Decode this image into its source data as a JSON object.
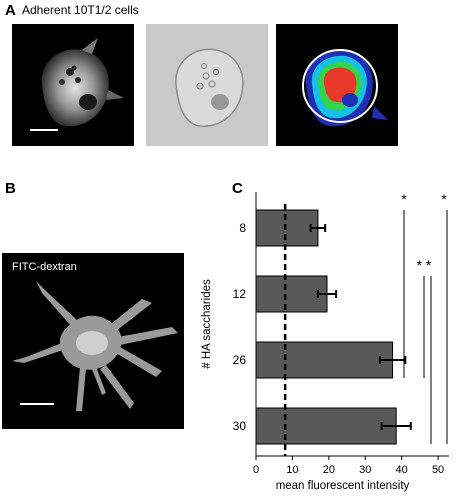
{
  "panel_a": {
    "letter": "A",
    "title": "Adherent 10T1/2 cells"
  },
  "panel_b": {
    "letter": "B",
    "label": "FITC-dextran"
  },
  "panel_c": {
    "letter": "C"
  },
  "chart_data": {
    "type": "bar",
    "orientation": "horizontal",
    "categories": [
      "8",
      "12",
      "26",
      "30"
    ],
    "values": [
      17,
      19.5,
      37.5,
      38.5
    ],
    "errors": [
      2,
      2.5,
      3.5,
      4
    ],
    "ylabel": "# HA saccharides",
    "xlabel": "mean fluorescent intensity",
    "xlim": [
      0,
      53
    ],
    "xticks": [
      "0",
      "10",
      "20",
      "30",
      "40",
      "50"
    ],
    "reference_line_x": 8,
    "bar_color": "#595959",
    "significance": [
      {
        "label": "*",
        "from": "8",
        "to": "26"
      },
      {
        "label": "*",
        "from": "8",
        "to": "30"
      },
      {
        "label": "* *",
        "from": "12",
        "to": "26"
      },
      {
        "label": "",
        "from": "12",
        "to": "30"
      }
    ]
  }
}
